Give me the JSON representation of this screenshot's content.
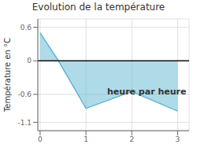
{
  "chart_data": {
    "type": "area",
    "title": "Evolution de la température",
    "y_label": "Température en °C",
    "annotations": [
      "heure par heure"
    ],
    "x": [
      0,
      0.4,
      1.0,
      2.0,
      3.0
    ],
    "values": [
      0.5,
      0.0,
      -0.85,
      -0.55,
      -0.9
    ],
    "color": "#60b8d4",
    "xlim": [
      -0.05,
      3.25
    ],
    "ylim": [
      -1.25,
      0.75
    ],
    "xticks": [
      0,
      1,
      2,
      3
    ],
    "yticks": [
      -1.1,
      -0.6,
      0.0,
      0.6
    ],
    "grid": true
  }
}
